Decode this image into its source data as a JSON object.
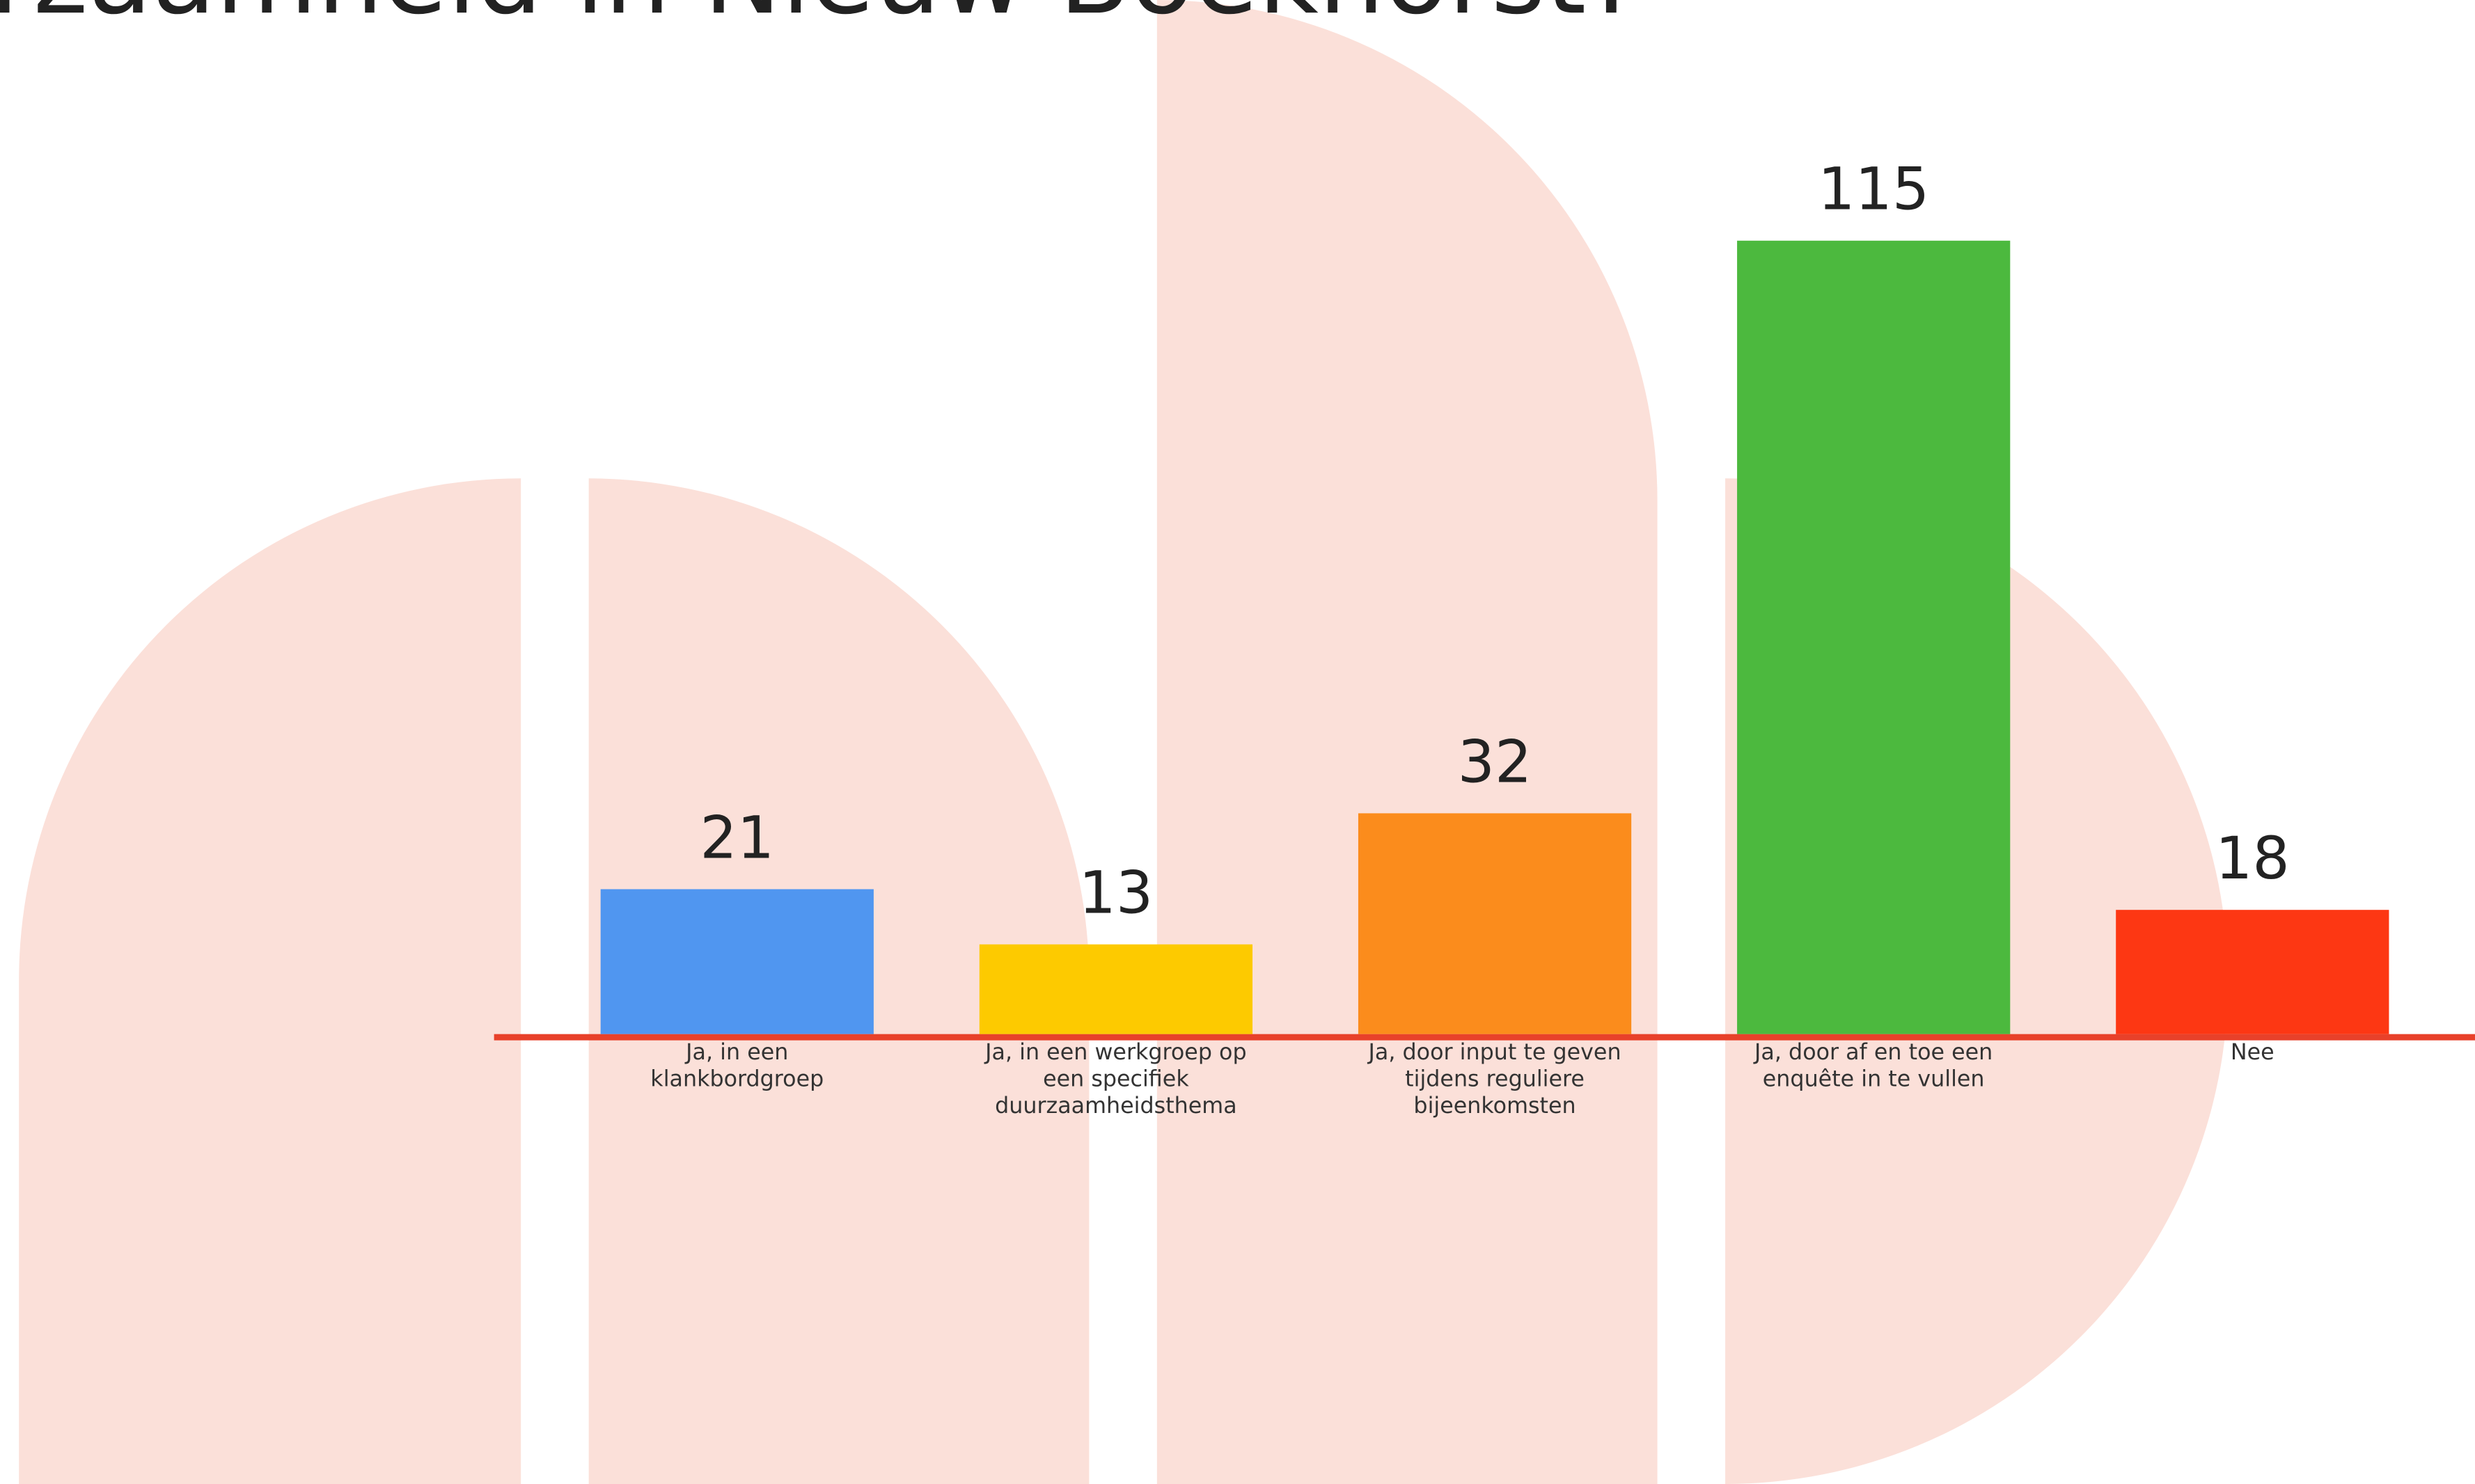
{
  "chart_data": {
    "type": "bar",
    "title": "rzaamheid in Nieuw Boekhorst?",
    "categories": [
      "Ja, in een klankbordgroep",
      "Ja, in een werkgroep op een specifiek duurzaamheidsthema",
      "Ja, door input te geven tijdens reguliere bijeenkomsten",
      "Ja, door af en toe een enquête in te vullen",
      "Nee"
    ],
    "values": [
      21,
      13,
      32,
      115,
      18
    ],
    "colors": [
      "#5096f0",
      "#fdca00",
      "#fb8c1c",
      "#4cb93e",
      "#fd3713"
    ]
  }
}
